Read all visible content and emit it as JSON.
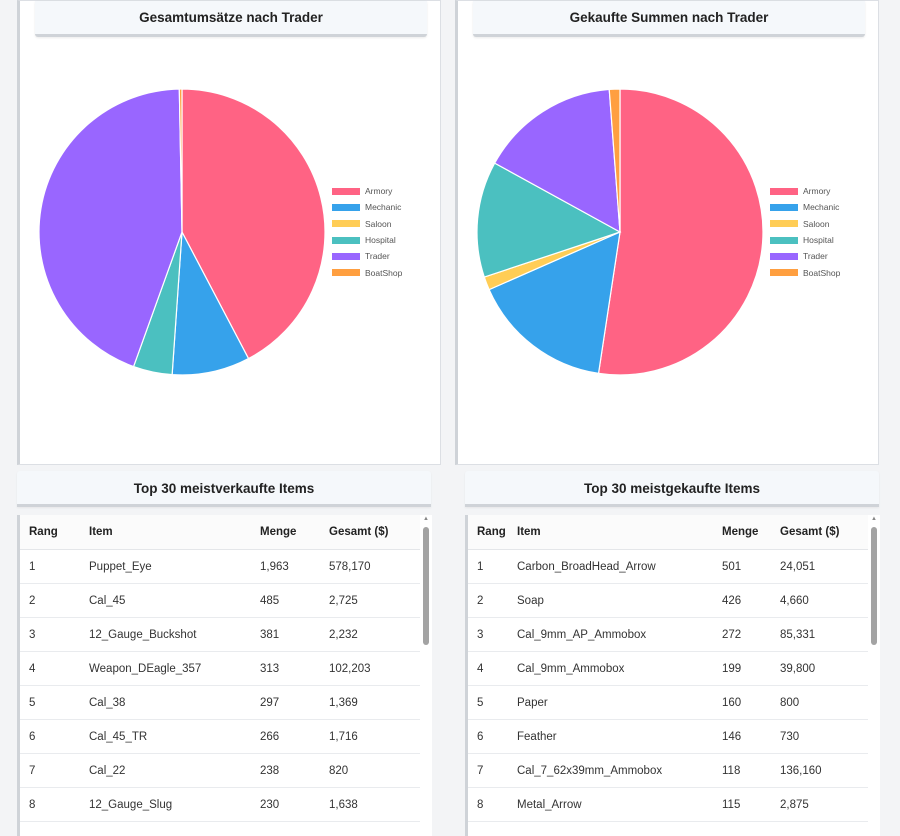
{
  "chart_data": [
    {
      "type": "pie",
      "title": "Gesamtumsätze nach Trader",
      "categories": [
        "Armory",
        "Mechanic",
        "Saloon",
        "Hospital",
        "Trader",
        "BoatShop"
      ],
      "values": [
        42.3,
        8.8,
        0.0,
        4.4,
        44.2,
        0.3
      ],
      "legend_position": "right"
    },
    {
      "type": "pie",
      "title": "Gekaufte Summen nach Trader",
      "categories": [
        "Armory",
        "Mechanic",
        "Saloon",
        "Hospital",
        "Trader",
        "BoatShop"
      ],
      "values": [
        52.4,
        16.0,
        1.5,
        13.1,
        15.8,
        1.2
      ],
      "legend_position": "right"
    }
  ],
  "colors": [
    "#ff6384",
    "#36a2eb",
    "#ffcd56",
    "#4bc0c0",
    "#9966ff",
    "#ff9f40"
  ],
  "tables": [
    {
      "title": "Top 30 meistverkaufte Items",
      "headers": [
        "Rang",
        "Item",
        "Menge",
        "Gesamt ($)"
      ],
      "rows": [
        [
          "1",
          "Puppet_Eye",
          "1,963",
          "578,170"
        ],
        [
          "2",
          "Cal_45",
          "485",
          "2,725"
        ],
        [
          "3",
          "12_Gauge_Buckshot",
          "381",
          "2,232"
        ],
        [
          "4",
          "Weapon_DEagle_357",
          "313",
          "102,203"
        ],
        [
          "5",
          "Cal_38",
          "297",
          "1,369"
        ],
        [
          "6",
          "Cal_45_TR",
          "266",
          "1,716"
        ],
        [
          "7",
          "Cal_22",
          "238",
          "820"
        ],
        [
          "8",
          "12_Gauge_Slug",
          "230",
          "1,638"
        ]
      ]
    },
    {
      "title": "Top 30 meistgekaufte Items",
      "headers": [
        "Rang",
        "Item",
        "Menge",
        "Gesamt ($)"
      ],
      "rows": [
        [
          "1",
          "Carbon_BroadHead_Arrow",
          "501",
          "24,051"
        ],
        [
          "2",
          "Soap",
          "426",
          "4,660"
        ],
        [
          "3",
          "Cal_9mm_AP_Ammobox",
          "272",
          "85,331"
        ],
        [
          "4",
          "Cal_9mm_Ammobox",
          "199",
          "39,800"
        ],
        [
          "5",
          "Paper",
          "160",
          "800"
        ],
        [
          "6",
          "Feather",
          "146",
          "730"
        ],
        [
          "7",
          "Cal_7_62x39mm_Ammobox",
          "118",
          "136,160"
        ],
        [
          "8",
          "Metal_Arrow",
          "115",
          "2,875"
        ]
      ]
    }
  ]
}
